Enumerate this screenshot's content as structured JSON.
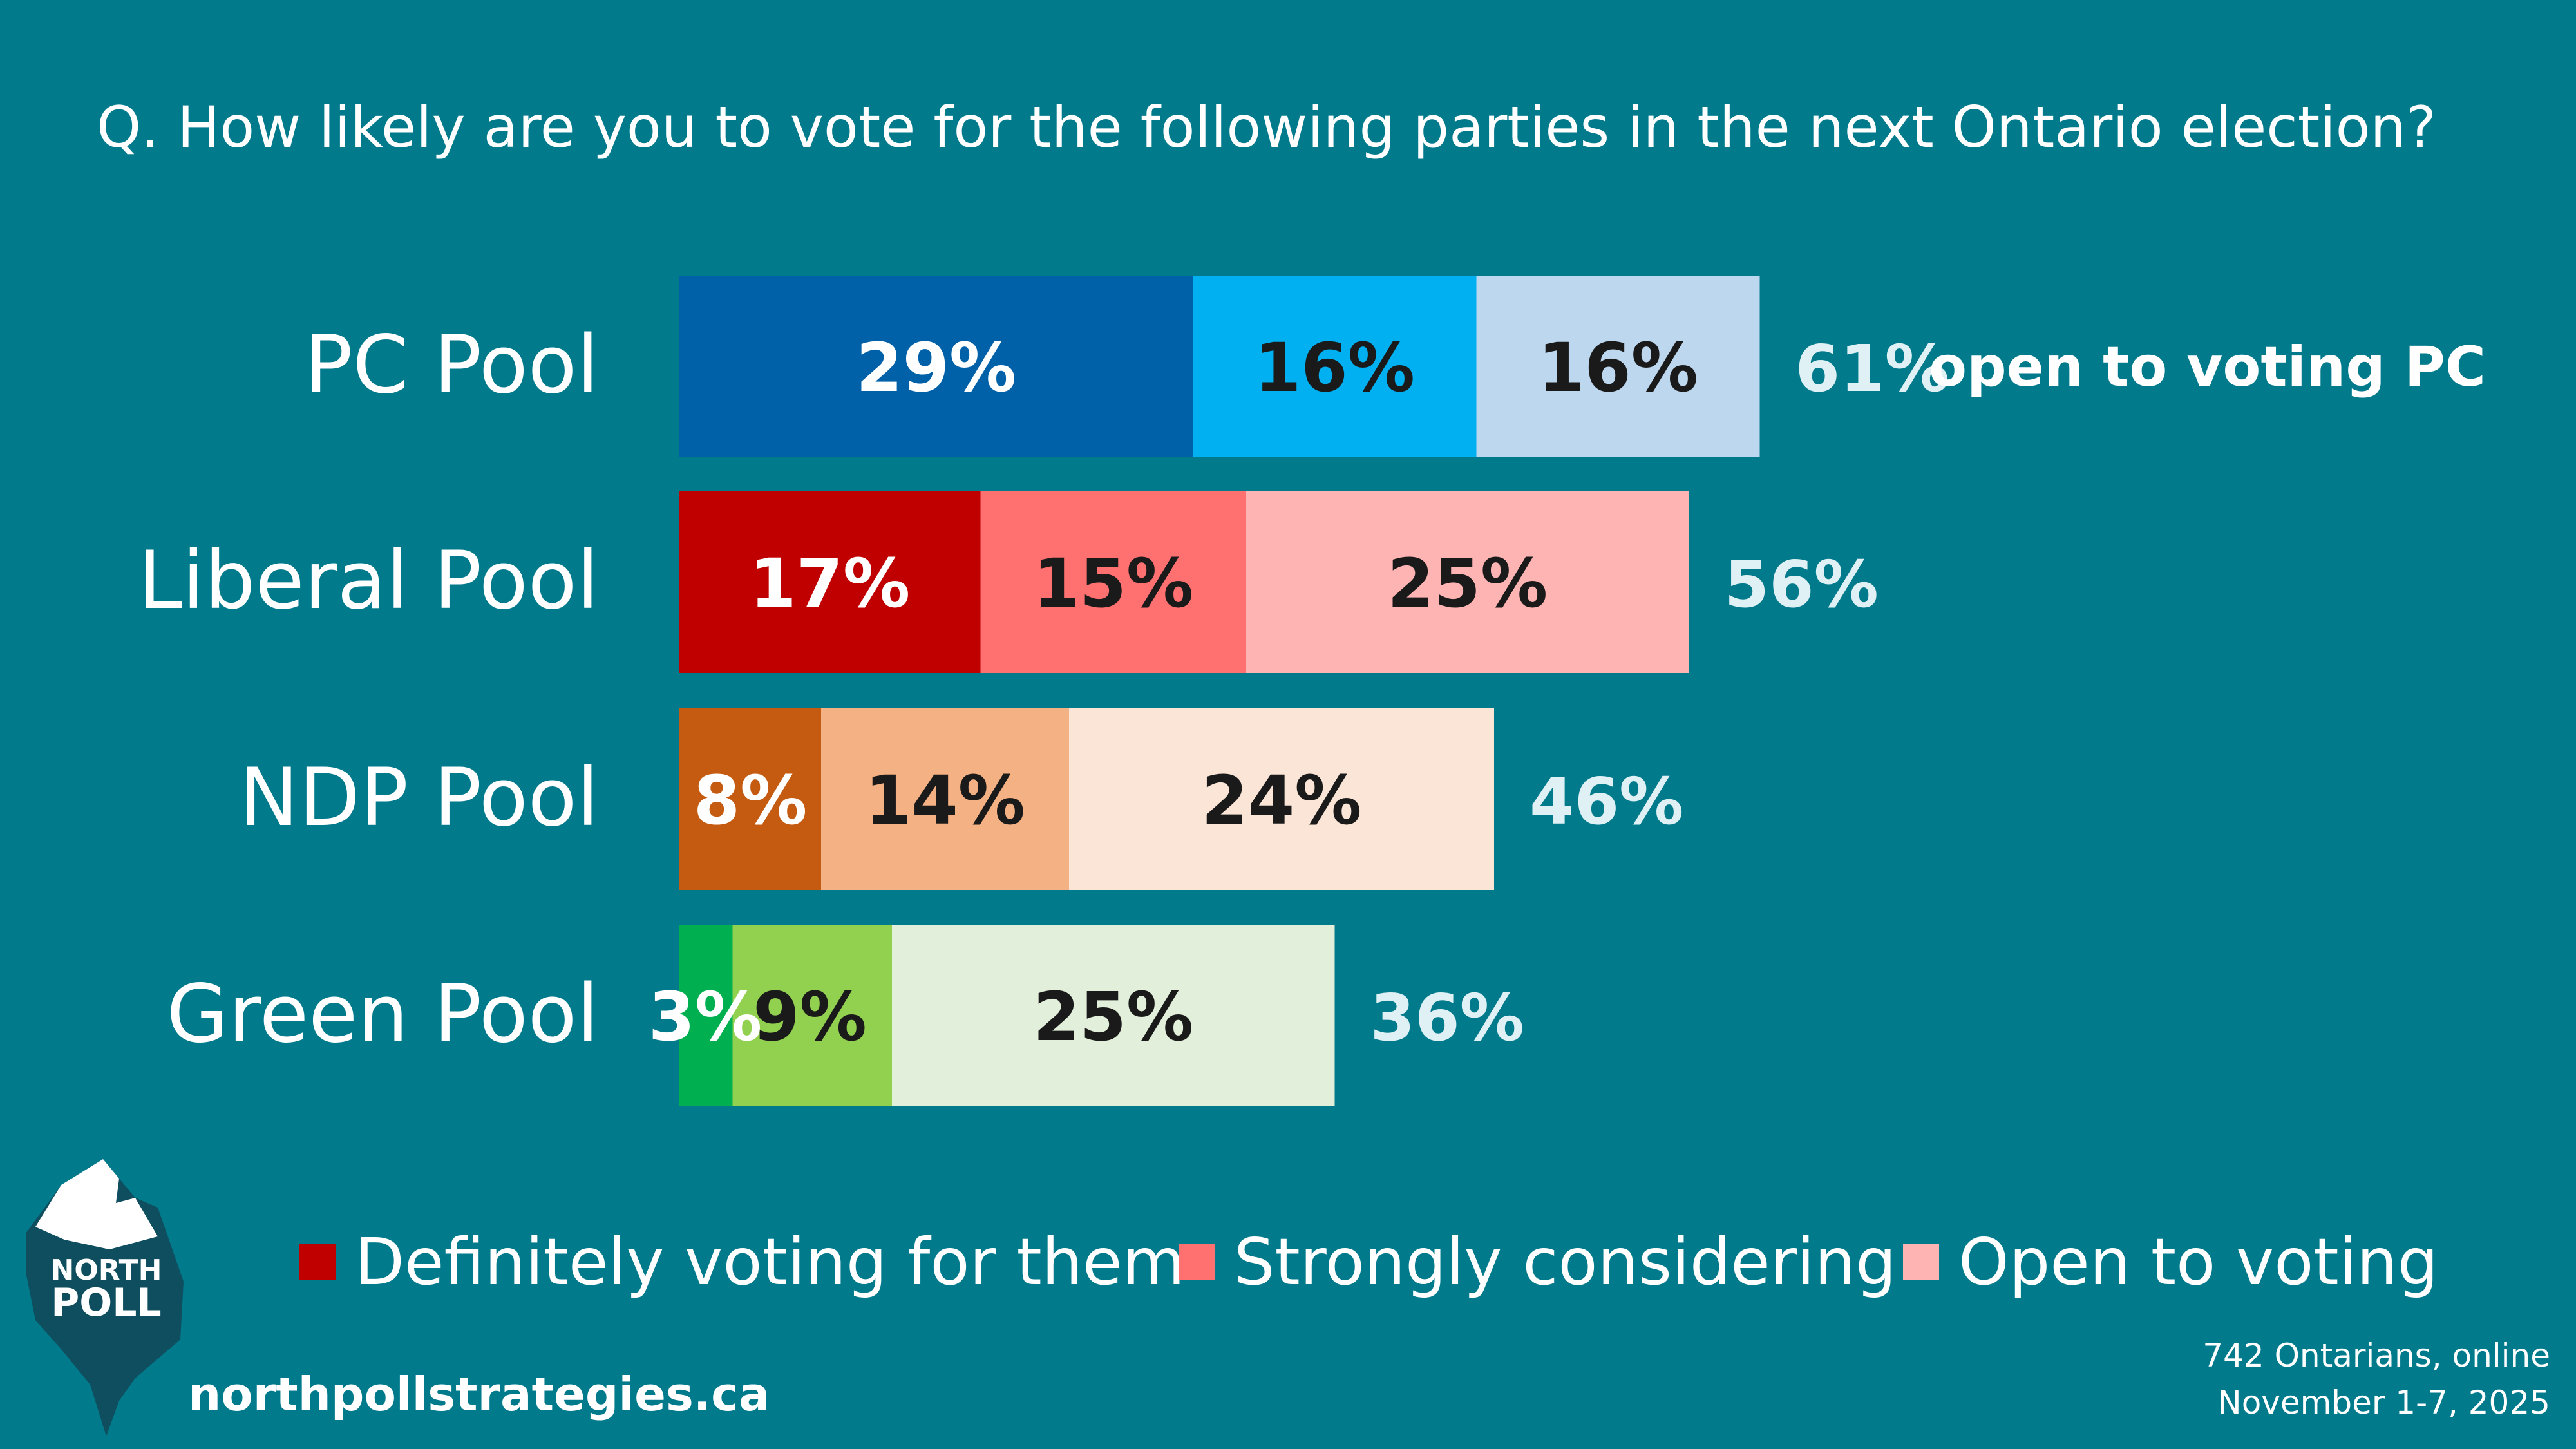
{
  "chart_data": {
    "type": "bar",
    "orientation": "horizontal",
    "stacked": true,
    "title": "Q. How likely are you to vote for the following parties in the next Ontario election?",
    "categories": [
      "PC Pool",
      "Liberal Pool",
      "NDP Pool",
      "Green Pool"
    ],
    "series": [
      {
        "name": "Definitely voting for them",
        "values": [
          29,
          17,
          8,
          3
        ]
      },
      {
        "name": "Strongly considering",
        "values": [
          16,
          15,
          14,
          9
        ]
      },
      {
        "name": "Open to voting",
        "values": [
          16,
          25,
          24,
          25
        ]
      }
    ],
    "value_labels": [
      [
        "29%",
        "16%",
        "16%"
      ],
      [
        "17%",
        "15%",
        "25%"
      ],
      [
        "8%",
        "14%",
        "24%"
      ],
      [
        "3%",
        "9%",
        "25%"
      ]
    ],
    "totals": [
      61,
      56,
      46,
      36
    ],
    "total_labels": [
      "61%",
      "56%",
      "46%",
      "36%"
    ],
    "total_annotation": "open to voting PC",
    "colors": [
      [
        "#0060a8",
        "#00b0f0",
        "#bdd7ee"
      ],
      [
        "#c00000",
        "#ff7070",
        "#ffb4b4"
      ],
      [
        "#c55a11",
        "#f4b183",
        "#fbe5d6"
      ],
      [
        "#00b050",
        "#92d050",
        "#e2efda"
      ]
    ],
    "label_colors": [
      [
        "#ffffff",
        "#1a1a1a",
        "#1a1a1a"
      ],
      [
        "#ffffff",
        "#1a1a1a",
        "#1a1a1a"
      ],
      [
        "#ffffff",
        "#1a1a1a",
        "#1a1a1a"
      ],
      [
        "#ffffff",
        "#1a1a1a",
        "#1a1a1a"
      ]
    ],
    "legend": {
      "placement": "bottom",
      "entries": [
        "Definitely voting for them",
        "Strongly considering",
        "Open to voting"
      ],
      "swatch_colors": [
        "#c00000",
        "#ff7070",
        "#ffb4b4"
      ]
    },
    "grid": false
  },
  "footer": {
    "url": "northpollstrategies.ca",
    "sample": "742 Ontarians, online",
    "dates": "November 1-7, 2025"
  },
  "logo": {
    "text_line1": "NORTH",
    "text_line2": "POLL",
    "icon": "iceberg-icon"
  },
  "theme": {
    "background": "#017a8c",
    "text": "#ffffff",
    "total_text": "#dff1f4"
  }
}
